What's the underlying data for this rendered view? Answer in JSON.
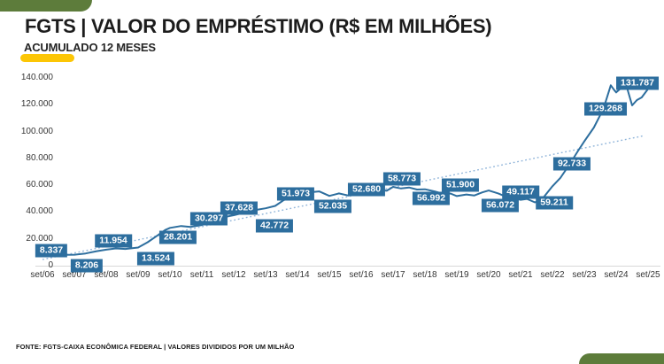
{
  "header": {
    "title": "FGTS | VALOR DO EMPRÉSTIMO (R$ EM MILHÕES)",
    "subtitle": "ACUMULADO 12 MESES"
  },
  "footer": {
    "source": "FONTE: FGTS-CAIXA ECONÔMICA FEDERAL | VALORES DIVIDIDOS POR UM MILHÃO"
  },
  "colors": {
    "accent_green": "#5d7c3b",
    "accent_yellow": "#fcc605",
    "series_blue": "#2d6e9e",
    "trendline_blue": "#8fb4d9",
    "axis_line_gray": "#d8d8d8",
    "text_dark": "#1c1c1c"
  },
  "chart_data": {
    "type": "line",
    "title": "FGTS | VALOR DO EMPRÉSTIMO (R$ EM MILHÕES) - ACUMULADO 12 MESES",
    "xlabel": "",
    "ylabel": "",
    "ylim": [
      0,
      140000
    ],
    "grid": false,
    "legend": false,
    "categories": [
      "set/06",
      "set/07",
      "set/08",
      "set/09",
      "set/10",
      "set/11",
      "set/12",
      "set/13",
      "set/14",
      "set/15",
      "set/16",
      "set/17",
      "set/18",
      "set/19",
      "set/20",
      "set/21",
      "set/22",
      "set/23",
      "set/24",
      "set/25"
    ],
    "values": [
      8337,
      8206,
      11954,
      13524,
      28201,
      30297,
      37628,
      42772,
      51973,
      52035,
      52680,
      58773,
      56992,
      51900,
      56072,
      49117,
      59211,
      92733,
      129268,
      131787
    ],
    "data_labels": [
      "8.337",
      "8.206",
      "11.954",
      "13.524",
      "28.201",
      "30.297",
      "37.628",
      "42.772",
      "51.973",
      "52.035",
      "52.680",
      "58.773",
      "56.992",
      "51.900",
      "56.072",
      "49.117",
      "59.211",
      "92.733",
      "129.268",
      "131.787"
    ],
    "y_ticks": [
      {
        "v": 0,
        "label": "0"
      },
      {
        "v": 20000,
        "label": "20.000"
      },
      {
        "v": 40000,
        "label": "40.000"
      },
      {
        "v": 60000,
        "label": "60.000"
      },
      {
        "v": 80000,
        "label": "80.000"
      },
      {
        "v": 100000,
        "label": "100.000"
      },
      {
        "v": 120000,
        "label": "120.000"
      },
      {
        "v": 140000,
        "label": "140.000"
      }
    ],
    "trendline": {
      "type": "linear",
      "style": "dotted",
      "start_value": 4600,
      "end_value": 97000
    }
  }
}
